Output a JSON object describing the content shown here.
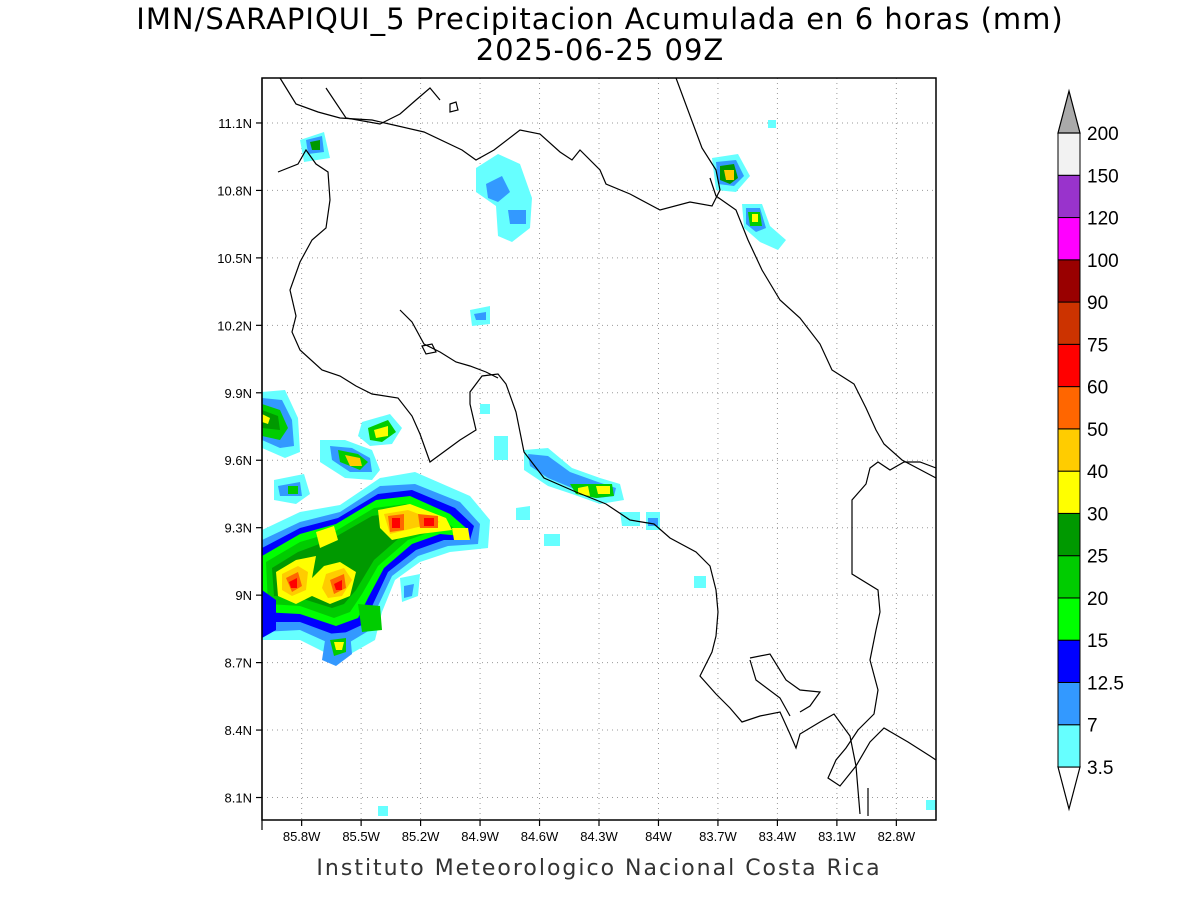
{
  "title": {
    "line1": "IMN/SARAPIQUI_5 Precipitacion Acumulada en 6 horas (mm)",
    "line2": "2025-06-25 09Z"
  },
  "footer": "Instituto Meteorologico Nacional Costa Rica",
  "map": {
    "lon_range": [
      -86.0,
      -82.6
    ],
    "lat_range": [
      8.0,
      11.3
    ],
    "lat_ticks": [
      "11.1N",
      "10.8N",
      "10.5N",
      "10.2N",
      "9.9N",
      "9.6N",
      "9.3N",
      "9N",
      "8.7N",
      "8.4N",
      "8.1N"
    ],
    "lon_ticks": [
      "85.8W",
      "85.5W",
      "85.2W",
      "84.9W",
      "84.6W",
      "84.3W",
      "84W",
      "83.7W",
      "83.4W",
      "83.1W",
      "82.8W"
    ],
    "grid": "dotted"
  },
  "colorbar": {
    "levels": [
      "3.5",
      "7",
      "12.5",
      "15",
      "20",
      "25",
      "30",
      "40",
      "50",
      "60",
      "75",
      "90",
      "100",
      "120",
      "150",
      "200"
    ],
    "colors": [
      "#66ffff",
      "#3399ff",
      "#0000ff",
      "#00ff00",
      "#00cc00",
      "#009900",
      "#ffff00",
      "#ffcc00",
      "#ff6600",
      "#ff0000",
      "#cc3300",
      "#990000",
      "#ff00ff",
      "#9933cc",
      "#f2f2f2",
      "#aaaaaa"
    ]
  }
}
